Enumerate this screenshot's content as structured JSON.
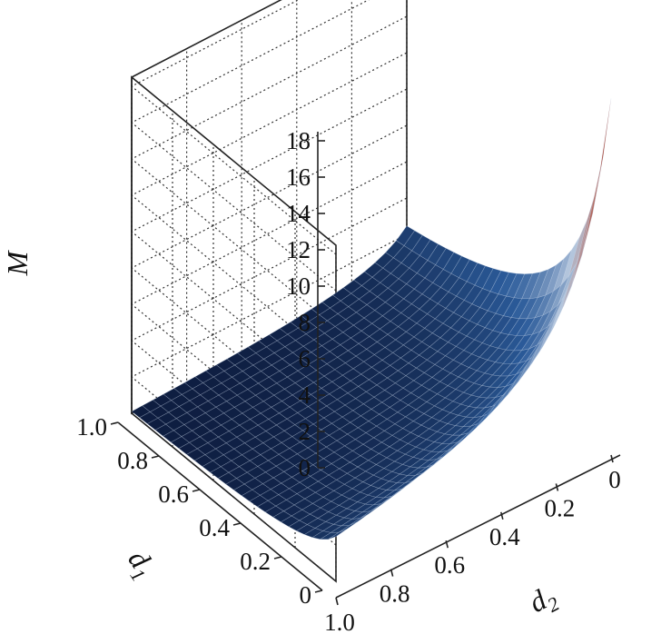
{
  "chart_data": {
    "type": "surface",
    "title": "",
    "x_axis": {
      "label": "d",
      "subscript": "2",
      "ticks": [
        "0",
        "0.2",
        "0.4",
        "0.6",
        "0.8",
        "1.0"
      ],
      "range": [
        0,
        1
      ]
    },
    "y_axis": {
      "label": "d",
      "subscript": "1",
      "ticks": [
        "0",
        "0.2",
        "0.4",
        "0.6",
        "0.8",
        "1.0"
      ],
      "range": [
        0,
        1
      ]
    },
    "z_axis": {
      "label": "M",
      "ticks": [
        "0",
        "2",
        "4",
        "6",
        "8",
        "10",
        "12",
        "14",
        "16",
        "18"
      ],
      "range": [
        0,
        18.5
      ]
    },
    "grid": true,
    "colormap": [
      "#0d1b3d",
      "#2b5b9a",
      "#b4c6dd",
      "#b3442b",
      "#7a1010"
    ],
    "samples": [
      {
        "d1": 0.0,
        "d2": 0.0,
        "M": 18.5
      },
      {
        "d1": 0.0,
        "d2": 0.2,
        "M": 3.0
      },
      {
        "d1": 0.0,
        "d2": 0.5,
        "M": 1.2
      },
      {
        "d1": 0.0,
        "d2": 1.0,
        "M": 0.6
      },
      {
        "d1": 0.2,
        "d2": 0.0,
        "M": 3.5
      },
      {
        "d1": 0.5,
        "d2": 0.0,
        "M": 1.5
      },
      {
        "d1": 1.0,
        "d2": 0.0,
        "M": 0.8
      },
      {
        "d1": 1.0,
        "d2": 1.0,
        "M": 0.1
      }
    ]
  }
}
